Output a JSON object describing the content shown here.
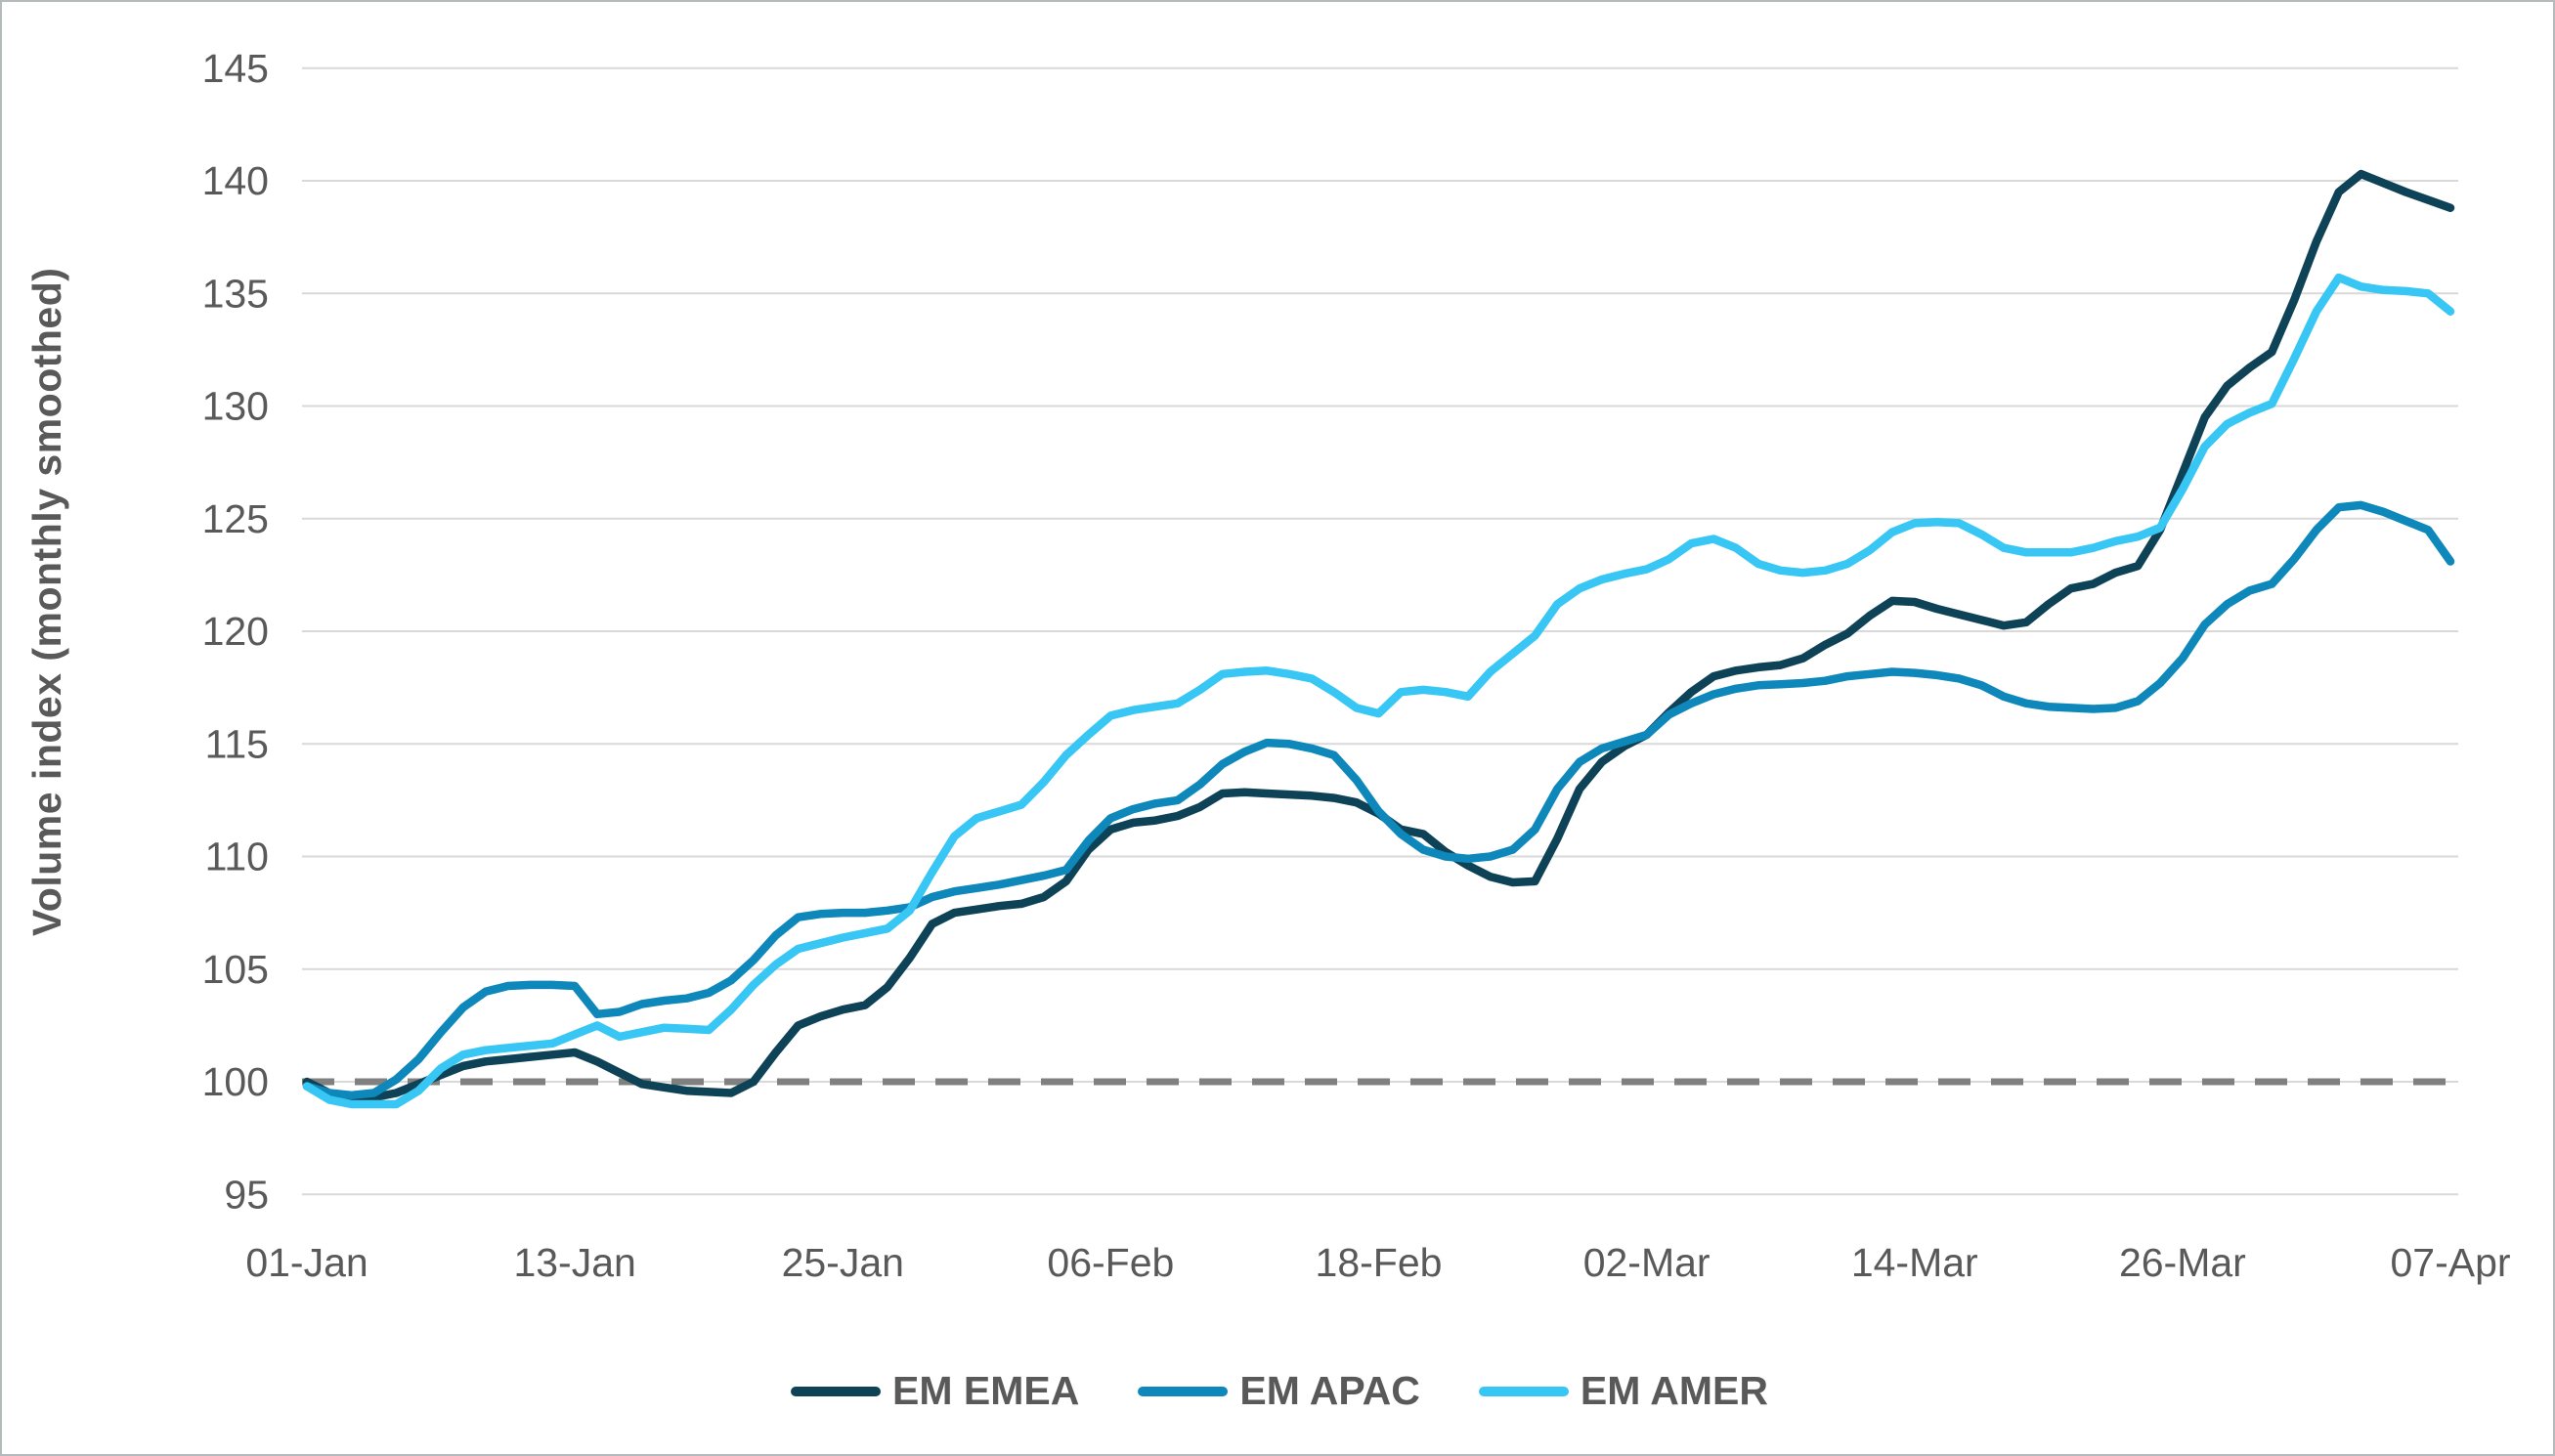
{
  "figure": {
    "background": "#ffffff",
    "border_color": "#b5babd"
  },
  "axis": {
    "y_title": "Volume index (monthly smoothed)",
    "tick_color": "#595959",
    "gridline_color": "#d9d9d9"
  },
  "legend": {
    "items": [
      {
        "label": "EM EMEA",
        "color": "#0d4257"
      },
      {
        "label": "EM APAC",
        "color": "#0e87ba"
      },
      {
        "label": "EM AMER",
        "color": "#38c6f4"
      }
    ]
  },
  "chart_data": {
    "type": "line",
    "title": "",
    "xlabel": "",
    "ylabel": "Volume index (monthly smoothed)",
    "ylim": [
      95,
      145
    ],
    "yticks": [
      95,
      100,
      105,
      110,
      115,
      120,
      125,
      130,
      135,
      140,
      145
    ],
    "grid": "horizontal",
    "legend_position": "bottom",
    "x_unit": "day index from 01-Jan (daily data, monthly smoothed)",
    "x_days_total": 96,
    "x_tick_days": [
      0,
      12,
      24,
      36,
      48,
      60,
      72,
      84,
      96
    ],
    "x_tick_labels": [
      "01-Jan",
      "13-Jan",
      "25-Jan",
      "06-Feb",
      "18-Feb",
      "02-Mar",
      "14-Mar",
      "26-Mar",
      "07-Apr"
    ],
    "baseline": {
      "value": 100,
      "style": "dashed",
      "color": "#808080"
    },
    "series": [
      {
        "name": "EM EMEA",
        "color": "#0d4257",
        "values": [
          100.0,
          99.5,
          99.3,
          99.3,
          99.5,
          99.9,
          100.3,
          100.7,
          100.9,
          101.0,
          101.1,
          101.2,
          101.3,
          100.9,
          100.4,
          99.9,
          99.75,
          99.6,
          99.55,
          99.5,
          100.0,
          101.3,
          102.5,
          102.9,
          103.2,
          103.4,
          104.2,
          105.5,
          107.0,
          107.5,
          107.65,
          107.8,
          107.9,
          108.2,
          108.9,
          110.3,
          111.2,
          111.5,
          111.6,
          111.8,
          112.2,
          112.8,
          112.85,
          112.8,
          112.75,
          112.7,
          112.6,
          112.4,
          111.9,
          111.2,
          111.0,
          110.2,
          109.6,
          109.1,
          108.85,
          108.9,
          110.8,
          113.0,
          114.2,
          114.9,
          115.4,
          116.4,
          117.3,
          118.0,
          118.25,
          118.4,
          118.5,
          118.8,
          119.4,
          119.9,
          120.7,
          121.35,
          121.3,
          121.0,
          120.75,
          120.5,
          120.25,
          120.4,
          121.2,
          121.9,
          122.1,
          122.6,
          122.9,
          124.5,
          127.0,
          129.5,
          130.9,
          131.7,
          132.4,
          134.7,
          137.3,
          139.5,
          140.3,
          139.9,
          139.5,
          139.15,
          138.8
        ]
      },
      {
        "name": "EM APAC",
        "color": "#0e87ba",
        "values": [
          99.8,
          99.5,
          99.4,
          99.5,
          100.1,
          101.0,
          102.2,
          103.3,
          104.0,
          104.25,
          104.3,
          104.3,
          104.25,
          103.0,
          103.1,
          103.45,
          103.6,
          103.7,
          103.95,
          104.5,
          105.4,
          106.5,
          107.3,
          107.45,
          107.5,
          107.5,
          107.6,
          107.75,
          108.2,
          108.45,
          108.6,
          108.75,
          108.95,
          109.15,
          109.4,
          110.7,
          111.7,
          112.1,
          112.35,
          112.5,
          113.2,
          114.1,
          114.65,
          115.05,
          115.0,
          114.8,
          114.5,
          113.4,
          112.0,
          111.0,
          110.3,
          110.0,
          109.9,
          110.0,
          110.3,
          111.2,
          113.0,
          114.2,
          114.8,
          115.1,
          115.4,
          116.3,
          116.8,
          117.2,
          117.45,
          117.6,
          117.65,
          117.7,
          117.8,
          118.0,
          118.1,
          118.2,
          118.15,
          118.05,
          117.9,
          117.6,
          117.1,
          116.8,
          116.65,
          116.6,
          116.55,
          116.6,
          116.9,
          117.7,
          118.8,
          120.3,
          121.2,
          121.8,
          122.1,
          123.2,
          124.5,
          125.5,
          125.6,
          125.3,
          124.9,
          124.5,
          123.1
        ]
      },
      {
        "name": "EM AMER",
        "color": "#38c6f4",
        "values": [
          99.8,
          99.2,
          99.0,
          99.0,
          99.0,
          99.6,
          100.6,
          101.2,
          101.4,
          101.5,
          101.6,
          101.7,
          102.1,
          102.5,
          102.0,
          102.2,
          102.4,
          102.35,
          102.3,
          103.2,
          104.3,
          105.2,
          105.9,
          106.15,
          106.4,
          106.6,
          106.8,
          107.6,
          109.3,
          110.9,
          111.7,
          112.0,
          112.3,
          113.3,
          114.5,
          115.4,
          116.25,
          116.5,
          116.65,
          116.8,
          117.4,
          118.1,
          118.2,
          118.25,
          118.1,
          117.9,
          117.3,
          116.6,
          116.35,
          117.3,
          117.4,
          117.3,
          117.1,
          118.2,
          119.0,
          119.8,
          121.2,
          121.9,
          122.3,
          122.55,
          122.75,
          123.2,
          123.9,
          124.1,
          123.7,
          123.0,
          122.7,
          122.6,
          122.7,
          123.0,
          123.6,
          124.4,
          124.8,
          124.85,
          124.8,
          124.3,
          123.7,
          123.5,
          123.5,
          123.5,
          123.7,
          124.0,
          124.2,
          124.6,
          126.3,
          128.2,
          129.2,
          129.7,
          130.1,
          132.1,
          134.2,
          135.7,
          135.3,
          135.15,
          135.1,
          135.0,
          134.2
        ]
      }
    ]
  }
}
